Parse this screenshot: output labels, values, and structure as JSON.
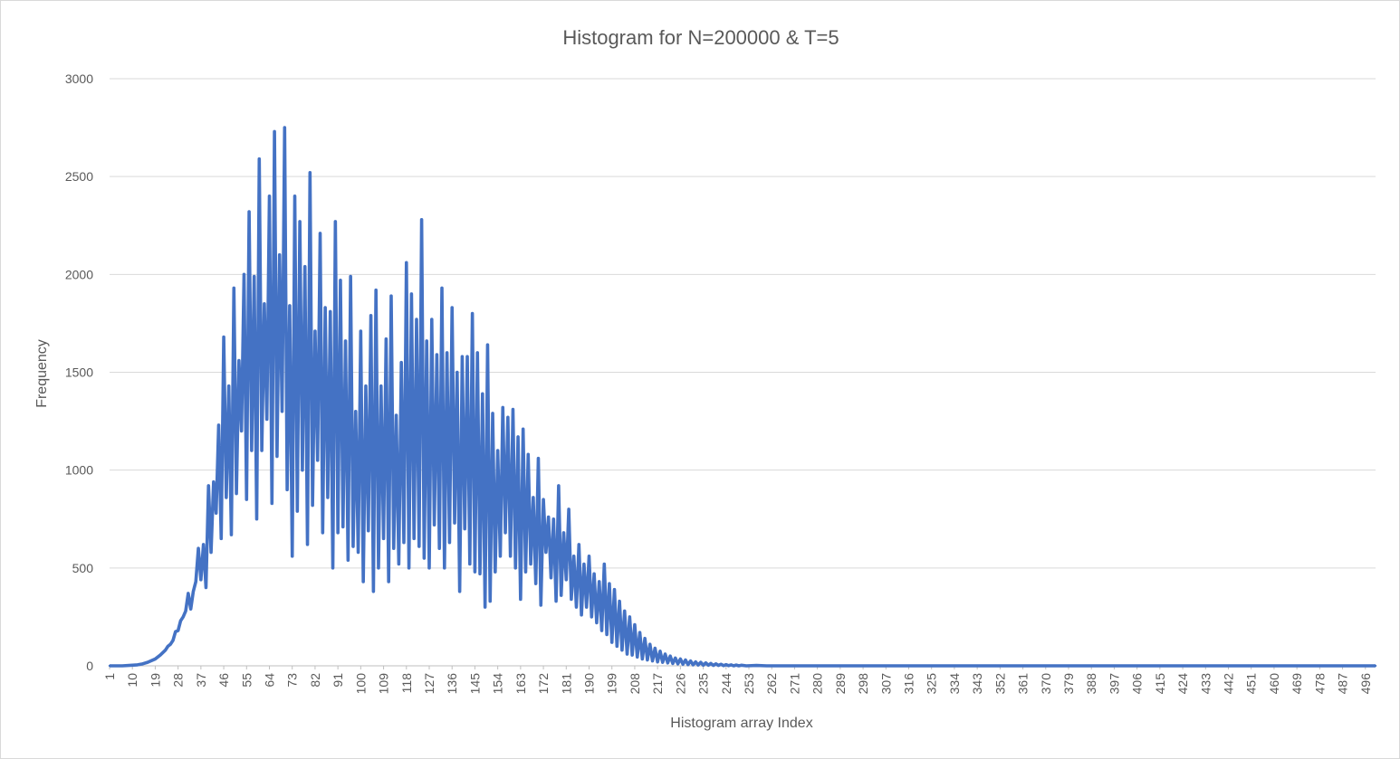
{
  "chart_data": {
    "type": "line",
    "title": "Histogram for N=200000 & T=5",
    "xlabel": "Histogram array Index",
    "ylabel": "Frequency",
    "ylim": [
      0,
      3000
    ],
    "yticks": [
      0,
      500,
      1000,
      1500,
      2000,
      2500,
      3000
    ],
    "x_range": [
      1,
      500
    ],
    "xtick_labels": [
      1,
      10,
      19,
      28,
      37,
      46,
      55,
      64,
      73,
      82,
      91,
      100,
      109,
      118,
      127,
      136,
      145,
      154,
      163,
      172,
      181,
      190,
      199,
      208,
      217,
      226,
      235,
      244,
      253,
      262,
      271,
      280,
      289,
      298,
      307,
      316,
      325,
      334,
      343,
      352,
      361,
      370,
      379,
      388,
      397,
      406,
      415,
      424,
      433,
      442,
      451,
      460,
      469,
      478,
      487,
      496
    ],
    "grid": true,
    "legend": "none",
    "series": [
      {
        "color": "#4472c4",
        "points": [
          [
            1,
            0
          ],
          [
            6,
            0
          ],
          [
            10,
            3
          ],
          [
            12,
            5
          ],
          [
            14,
            10
          ],
          [
            16,
            18
          ],
          [
            19,
            35
          ],
          [
            21,
            55
          ],
          [
            23,
            80
          ],
          [
            24,
            100
          ],
          [
            25,
            110
          ],
          [
            26,
            130
          ],
          [
            27,
            175
          ],
          [
            28,
            180
          ],
          [
            29,
            230
          ],
          [
            30,
            250
          ],
          [
            31,
            280
          ],
          [
            32,
            370
          ],
          [
            33,
            290
          ],
          [
            34,
            380
          ],
          [
            35,
            430
          ],
          [
            36,
            600
          ],
          [
            37,
            440
          ],
          [
            38,
            620
          ],
          [
            39,
            400
          ],
          [
            40,
            920
          ],
          [
            41,
            580
          ],
          [
            42,
            940
          ],
          [
            43,
            780
          ],
          [
            44,
            1230
          ],
          [
            45,
            650
          ],
          [
            46,
            1680
          ],
          [
            47,
            860
          ],
          [
            48,
            1430
          ],
          [
            49,
            670
          ],
          [
            50,
            1930
          ],
          [
            51,
            880
          ],
          [
            52,
            1560
          ],
          [
            53,
            1200
          ],
          [
            54,
            2000
          ],
          [
            55,
            850
          ],
          [
            56,
            2320
          ],
          [
            57,
            1100
          ],
          [
            58,
            1990
          ],
          [
            59,
            750
          ],
          [
            60,
            2590
          ],
          [
            61,
            1100
          ],
          [
            62,
            1850
          ],
          [
            63,
            1260
          ],
          [
            64,
            2400
          ],
          [
            65,
            830
          ],
          [
            66,
            2730
          ],
          [
            67,
            1070
          ],
          [
            68,
            2100
          ],
          [
            69,
            1300
          ],
          [
            70,
            2750
          ],
          [
            71,
            900
          ],
          [
            72,
            1840
          ],
          [
            73,
            560
          ],
          [
            74,
            2400
          ],
          [
            75,
            790
          ],
          [
            76,
            2270
          ],
          [
            77,
            1000
          ],
          [
            78,
            2040
          ],
          [
            79,
            620
          ],
          [
            80,
            2520
          ],
          [
            81,
            820
          ],
          [
            82,
            1710
          ],
          [
            83,
            1050
          ],
          [
            84,
            2210
          ],
          [
            85,
            680
          ],
          [
            86,
            1830
          ],
          [
            87,
            860
          ],
          [
            88,
            1810
          ],
          [
            89,
            500
          ],
          [
            90,
            2270
          ],
          [
            91,
            680
          ],
          [
            92,
            1970
          ],
          [
            93,
            710
          ],
          [
            94,
            1660
          ],
          [
            95,
            540
          ],
          [
            96,
            1990
          ],
          [
            97,
            610
          ],
          [
            98,
            1300
          ],
          [
            99,
            580
          ],
          [
            100,
            1710
          ],
          [
            101,
            430
          ],
          [
            102,
            1430
          ],
          [
            103,
            690
          ],
          [
            104,
            1790
          ],
          [
            105,
            380
          ],
          [
            106,
            1920
          ],
          [
            107,
            500
          ],
          [
            108,
            1430
          ],
          [
            109,
            650
          ],
          [
            110,
            1670
          ],
          [
            111,
            430
          ],
          [
            112,
            1890
          ],
          [
            113,
            600
          ],
          [
            114,
            1280
          ],
          [
            115,
            520
          ],
          [
            116,
            1550
          ],
          [
            117,
            630
          ],
          [
            118,
            2060
          ],
          [
            119,
            500
          ],
          [
            120,
            1900
          ],
          [
            121,
            650
          ],
          [
            122,
            1770
          ],
          [
            123,
            610
          ],
          [
            124,
            2280
          ],
          [
            125,
            550
          ],
          [
            126,
            1660
          ],
          [
            127,
            500
          ],
          [
            128,
            1770
          ],
          [
            129,
            720
          ],
          [
            130,
            1590
          ],
          [
            131,
            600
          ],
          [
            132,
            1930
          ],
          [
            133,
            500
          ],
          [
            134,
            1600
          ],
          [
            135,
            630
          ],
          [
            136,
            1830
          ],
          [
            137,
            730
          ],
          [
            138,
            1500
          ],
          [
            139,
            380
          ],
          [
            140,
            1580
          ],
          [
            141,
            700
          ],
          [
            142,
            1580
          ],
          [
            143,
            520
          ],
          [
            144,
            1800
          ],
          [
            145,
            480
          ],
          [
            146,
            1600
          ],
          [
            147,
            470
          ],
          [
            148,
            1390
          ],
          [
            149,
            300
          ],
          [
            150,
            1640
          ],
          [
            151,
            330
          ],
          [
            152,
            1290
          ],
          [
            153,
            480
          ],
          [
            154,
            1100
          ],
          [
            155,
            560
          ],
          [
            156,
            1320
          ],
          [
            157,
            680
          ],
          [
            158,
            1270
          ],
          [
            159,
            560
          ],
          [
            160,
            1310
          ],
          [
            161,
            500
          ],
          [
            162,
            1170
          ],
          [
            163,
            340
          ],
          [
            164,
            1210
          ],
          [
            165,
            480
          ],
          [
            166,
            1080
          ],
          [
            167,
            520
          ],
          [
            168,
            860
          ],
          [
            169,
            420
          ],
          [
            170,
            1060
          ],
          [
            171,
            310
          ],
          [
            172,
            850
          ],
          [
            173,
            580
          ],
          [
            174,
            760
          ],
          [
            175,
            450
          ],
          [
            176,
            750
          ],
          [
            177,
            330
          ],
          [
            178,
            920
          ],
          [
            179,
            360
          ],
          [
            180,
            680
          ],
          [
            181,
            440
          ],
          [
            182,
            800
          ],
          [
            183,
            340
          ],
          [
            184,
            560
          ],
          [
            185,
            300
          ],
          [
            186,
            620
          ],
          [
            187,
            260
          ],
          [
            188,
            520
          ],
          [
            189,
            300
          ],
          [
            190,
            560
          ],
          [
            191,
            250
          ],
          [
            192,
            470
          ],
          [
            193,
            220
          ],
          [
            194,
            430
          ],
          [
            195,
            180
          ],
          [
            196,
            520
          ],
          [
            197,
            160
          ],
          [
            198,
            420
          ],
          [
            199,
            120
          ],
          [
            200,
            390
          ],
          [
            201,
            100
          ],
          [
            202,
            330
          ],
          [
            203,
            80
          ],
          [
            204,
            280
          ],
          [
            205,
            60
          ],
          [
            206,
            250
          ],
          [
            207,
            55
          ],
          [
            208,
            210
          ],
          [
            209,
            45
          ],
          [
            210,
            170
          ],
          [
            211,
            35
          ],
          [
            212,
            140
          ],
          [
            213,
            30
          ],
          [
            214,
            110
          ],
          [
            215,
            25
          ],
          [
            216,
            90
          ],
          [
            217,
            20
          ],
          [
            218,
            75
          ],
          [
            219,
            18
          ],
          [
            220,
            60
          ],
          [
            221,
            15
          ],
          [
            222,
            50
          ],
          [
            223,
            12
          ],
          [
            224,
            40
          ],
          [
            225,
            10
          ],
          [
            226,
            35
          ],
          [
            227,
            8
          ],
          [
            228,
            30
          ],
          [
            229,
            6
          ],
          [
            230,
            25
          ],
          [
            231,
            5
          ],
          [
            232,
            20
          ],
          [
            233,
            4
          ],
          [
            234,
            18
          ],
          [
            235,
            3
          ],
          [
            236,
            15
          ],
          [
            237,
            3
          ],
          [
            238,
            12
          ],
          [
            239,
            2
          ],
          [
            240,
            10
          ],
          [
            241,
            2
          ],
          [
            242,
            8
          ],
          [
            243,
            1
          ],
          [
            244,
            6
          ],
          [
            245,
            1
          ],
          [
            246,
            5
          ],
          [
            247,
            0
          ],
          [
            248,
            4
          ],
          [
            249,
            0
          ],
          [
            250,
            3
          ],
          [
            252,
            0
          ],
          [
            256,
            2
          ],
          [
            260,
            0
          ],
          [
            268,
            0
          ],
          [
            280,
            0
          ],
          [
            300,
            0
          ],
          [
            350,
            0
          ],
          [
            400,
            0
          ],
          [
            450,
            0
          ],
          [
            500,
            0
          ]
        ]
      }
    ]
  }
}
